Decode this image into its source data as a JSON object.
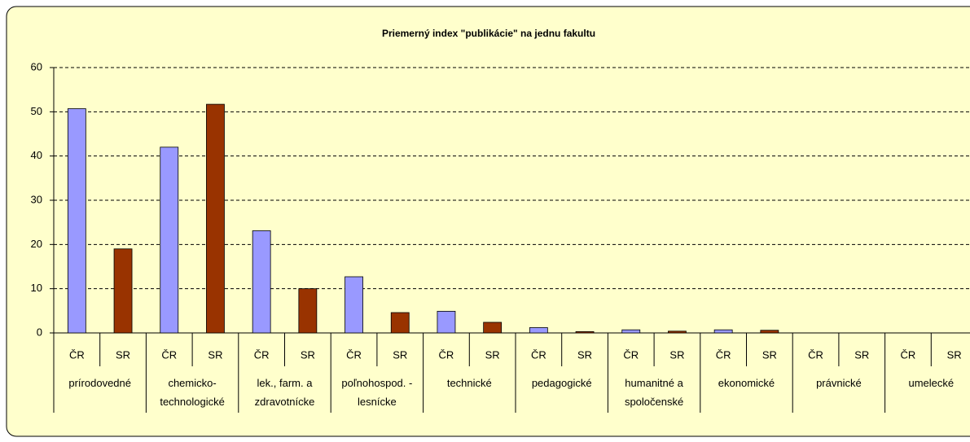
{
  "chart_data": {
    "type": "bar",
    "title": "Priemerný index \"publikácie\" na jednu fakultu",
    "categories": [
      "prírodovedné",
      "chemicko-technologické",
      "lek., farm. a zdravotnícke",
      "poľnohospod. - lesnícke",
      "technické",
      "pedagogické",
      "humanitné a spoločenské",
      "ekonomické",
      "právnické",
      "umelecké"
    ],
    "series": [
      {
        "name": "ČR",
        "color": "#9999ff",
        "values": [
          50.7,
          42,
          23.1,
          12.7,
          4.9,
          1.2,
          0.7,
          0.7,
          0,
          0
        ]
      },
      {
        "name": "SR",
        "color": "#993300",
        "values": [
          19,
          51.7,
          10,
          4.6,
          2.4,
          0.3,
          0.4,
          0.6,
          0,
          0
        ]
      }
    ],
    "ylim": [
      0,
      60
    ],
    "yticks": [
      0,
      10,
      20,
      30,
      40,
      50,
      60
    ],
    "grid": true
  }
}
